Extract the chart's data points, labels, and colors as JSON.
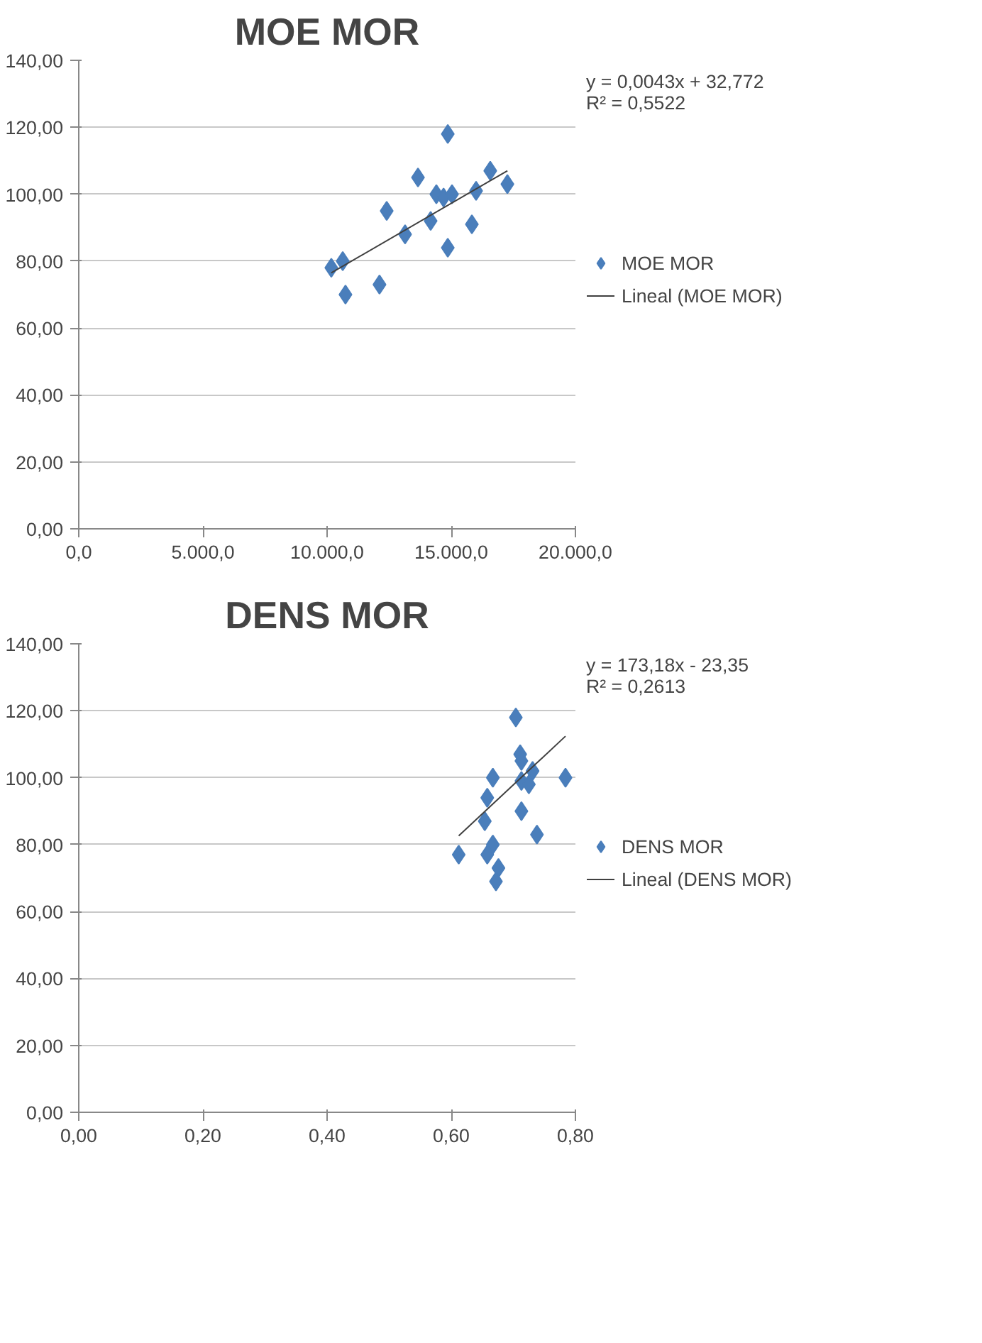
{
  "chart_data": [
    {
      "type": "scatter",
      "title": "MOE MOR",
      "marker": "diamond",
      "grid": "y",
      "legend": "right",
      "annotations": [
        "y = 0,0043x + 32,772",
        "R² = 0,5522"
      ],
      "xlim": [
        0,
        20000
      ],
      "ylim": [
        0,
        140
      ],
      "xticks": [
        {
          "value": 0,
          "label": "0,0"
        },
        {
          "value": 5000,
          "label": "5.000,0"
        },
        {
          "value": 10000,
          "label": "10.000,0"
        },
        {
          "value": 15000,
          "label": "15.000,0"
        },
        {
          "value": 20000,
          "label": "20.000,0"
        }
      ],
      "yticks": [
        {
          "value": 0,
          "label": "0,00"
        },
        {
          "value": 20,
          "label": "20,00"
        },
        {
          "value": 40,
          "label": "40,00"
        },
        {
          "value": 60,
          "label": "60,00"
        },
        {
          "value": 80,
          "label": "80,00"
        },
        {
          "value": 100,
          "label": "100,00"
        },
        {
          "value": 120,
          "label": "120,00"
        },
        {
          "value": 140,
          "label": "140,00"
        }
      ],
      "series": [
        {
          "name": "MOE MOR",
          "color": "#4a7ebb",
          "x": [
            10170,
            10630,
            10740,
            12110,
            12400,
            13140,
            13660,
            14170,
            14400,
            14690,
            14860,
            14860,
            15030,
            15830,
            16000,
            16570,
            17260
          ],
          "values": [
            78,
            80,
            70,
            73,
            95,
            88,
            105,
            92,
            100,
            99,
            118,
            84,
            100,
            91,
            101,
            107,
            103
          ]
        },
        {
          "name": "Lineal (MOE MOR)",
          "type": "line",
          "marker": "none",
          "color": "#404040",
          "x": [
            10170,
            17260
          ],
          "values": [
            76.5,
            107.0
          ]
        }
      ]
    },
    {
      "type": "scatter",
      "title": "DENS MOR",
      "marker": "diamond",
      "grid": "y",
      "legend": "right",
      "annotations": [
        "y = 173,18x - 23,35",
        "R² = 0,2613"
      ],
      "xlim": [
        0,
        0.8
      ],
      "ylim": [
        0,
        140
      ],
      "xticks": [
        {
          "value": 0,
          "label": "0,00"
        },
        {
          "value": 0.2,
          "label": "0,20"
        },
        {
          "value": 0.4,
          "label": "0,40"
        },
        {
          "value": 0.6,
          "label": "0,60"
        },
        {
          "value": 0.8,
          "label": "0,80"
        }
      ],
      "yticks": [
        {
          "value": 0,
          "label": "0,00"
        },
        {
          "value": 20,
          "label": "20,00"
        },
        {
          "value": 40,
          "label": "40,00"
        },
        {
          "value": 60,
          "label": "60,00"
        },
        {
          "value": 80,
          "label": "80,00"
        },
        {
          "value": 100,
          "label": "100,00"
        },
        {
          "value": 120,
          "label": "120,00"
        },
        {
          "value": 140,
          "label": "140,00"
        }
      ],
      "series": [
        {
          "name": "DENS MOR",
          "color": "#4a7ebb",
          "x": [
            0.704,
            0.711,
            0.713,
            0.731,
            0.784,
            0.667,
            0.713,
            0.725,
            0.658,
            0.713,
            0.654,
            0.738,
            0.667,
            0.658,
            0.612,
            0.676,
            0.672
          ],
          "values": [
            118,
            107,
            105,
            102,
            100,
            100,
            99,
            98,
            94,
            90,
            87,
            83,
            80,
            77,
            77,
            73,
            69
          ]
        },
        {
          "name": "Lineal (DENS MOR)",
          "type": "line",
          "marker": "none",
          "color": "#404040",
          "x": [
            0.612,
            0.784
          ],
          "values": [
            82.6,
            112.4
          ]
        }
      ]
    }
  ]
}
